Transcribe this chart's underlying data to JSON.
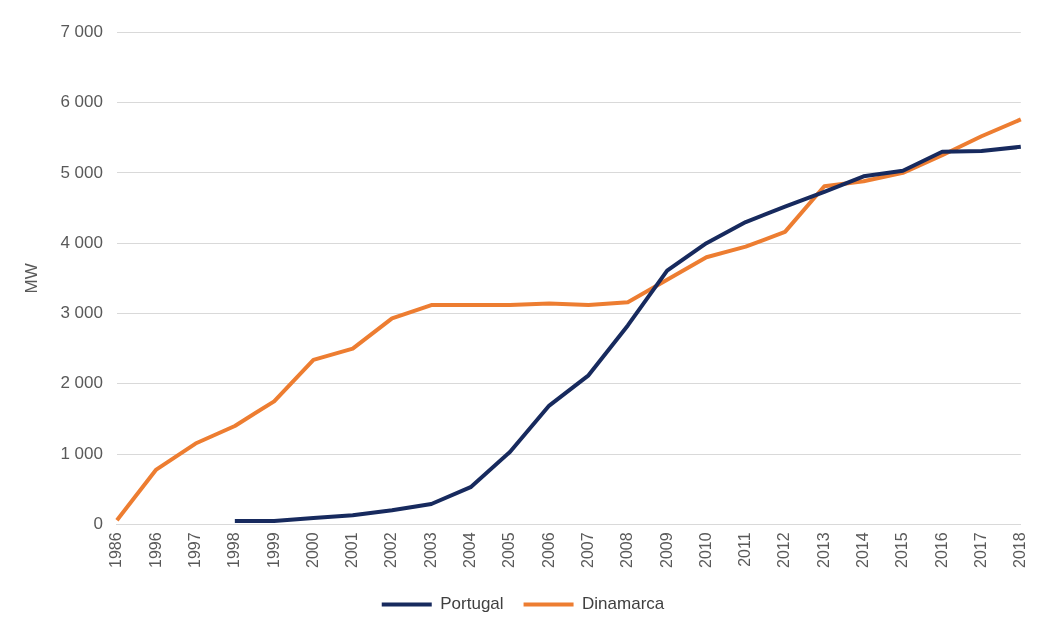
{
  "chart_data": {
    "type": "line",
    "ylabel": "MW",
    "categories": [
      "1986",
      "1996",
      "1997",
      "1998",
      "1999",
      "2000",
      "2001",
      "2002",
      "2003",
      "2004",
      "2005",
      "2006",
      "2007",
      "2008",
      "2009",
      "2010",
      "2011",
      "2012",
      "2013",
      "2014",
      "2015",
      "2016",
      "2017",
      "2018"
    ],
    "series": [
      {
        "name": "Portugal",
        "color": "#172a5e",
        "values": [
          null,
          null,
          null,
          50,
          50,
          90,
          130,
          200,
          290,
          530,
          1030,
          1690,
          2120,
          2830,
          3610,
          4000,
          4300,
          4520,
          4730,
          4950,
          5030,
          5300,
          5310,
          5370
        ]
      },
      {
        "name": "Dinamarca",
        "color": "#ed7d31",
        "values": [
          60,
          780,
          1150,
          1400,
          1750,
          2340,
          2500,
          2930,
          3120,
          3120,
          3120,
          3140,
          3120,
          3160,
          3480,
          3800,
          3950,
          4160,
          4810,
          4880,
          5000,
          5250,
          5520,
          5760
        ]
      }
    ],
    "ylim": [
      0,
      7000
    ],
    "yticks": [
      0,
      {
        "value": 1000,
        "label": "1 000"
      },
      {
        "value": 2000,
        "label": "2 000"
      },
      {
        "value": 3000,
        "label": "3 000"
      },
      {
        "value": 4000,
        "label": "4 000"
      },
      {
        "value": 5000,
        "label": "5 000"
      },
      {
        "value": 6000,
        "label": "6 000"
      },
      {
        "value": 7000,
        "label": "7 000"
      }
    ],
    "grid": "y",
    "legend": "bottom",
    "marker": "none",
    "line_style": "solid"
  }
}
